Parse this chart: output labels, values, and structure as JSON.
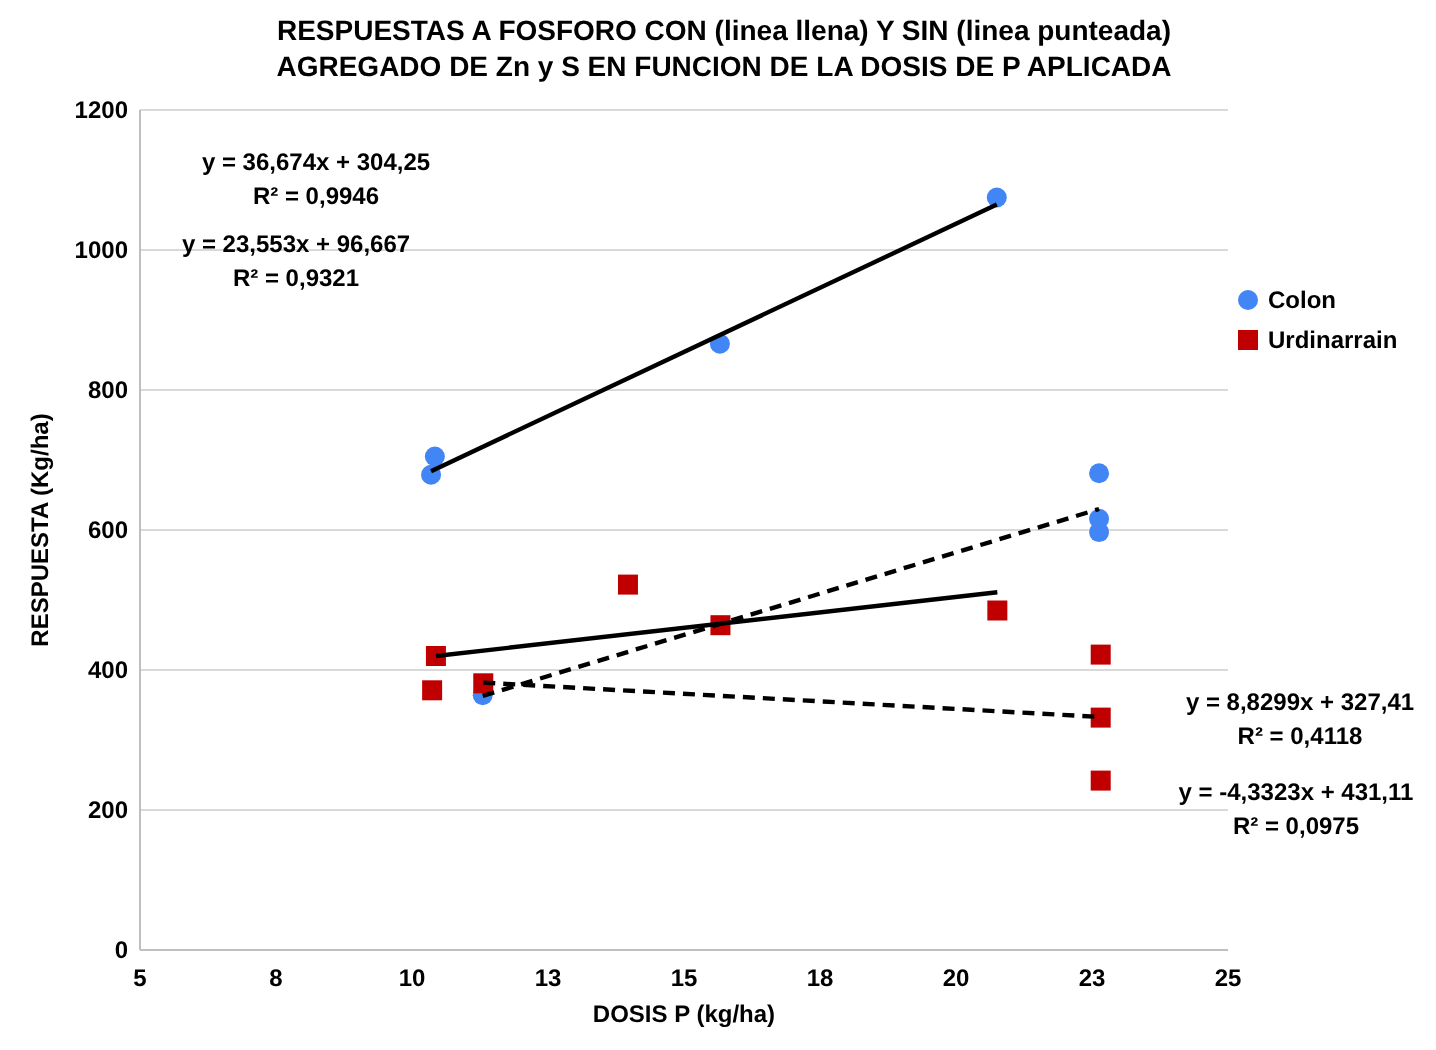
{
  "chart_data": {
    "type": "scatter",
    "title": "RESPUESTAS A FOSFORO CON (linea llena)  Y SIN (linea punteada)\nAGREGADO DE Zn y S EN FUNCION DE LA DOSIS DE P APLICADA",
    "xlabel": "DOSIS P (kg/ha)",
    "ylabel": "RESPUESTA (Kg/ha)",
    "xlim": [
      5,
      25
    ],
    "xticks": [
      5,
      {
        "value": 7.5,
        "label": "8"
      },
      10,
      {
        "value": 12.5,
        "label": "13"
      },
      15,
      {
        "value": 17.5,
        "label": "18"
      },
      20,
      {
        "value": 22.5,
        "label": "23"
      },
      25
    ],
    "ylim": [
      0,
      1200
    ],
    "yticks": [
      0,
      200,
      400,
      600,
      800,
      1000,
      1200
    ],
    "grid": "y",
    "legend": "right",
    "series": [
      {
        "name": "Colon",
        "marker": "circle",
        "color": "#4285f4",
        "x": [
          10.35,
          10.42,
          11.3,
          15.66,
          20.75,
          22.63,
          22.63,
          22.63
        ],
        "values": [
          679,
          705,
          364,
          866,
          1075,
          681,
          616,
          597
        ]
      },
      {
        "name": "Urdinarrain",
        "marker": "square",
        "color": "#c00000",
        "x": [
          10.44,
          10.37,
          11.31,
          13.97,
          15.67,
          20.76,
          22.66,
          22.66,
          22.66
        ],
        "values": [
          420,
          371,
          381,
          522,
          464,
          485,
          422,
          332,
          242
        ]
      },
      {
        "type": "line",
        "marker": "none",
        "line_style": "solid",
        "color": "#000000",
        "x": [
          10.35,
          20.75
        ],
        "values": [
          684,
          1065
        ]
      },
      {
        "type": "line",
        "marker": "none",
        "line_style": "dashed",
        "color": "#000000",
        "x": [
          11.3,
          22.63
        ],
        "values": [
          363,
          630
        ]
      },
      {
        "type": "line",
        "marker": "none",
        "line_style": "solid",
        "color": "#000000",
        "x": [
          10.44,
          20.76
        ],
        "values": [
          420,
          511
        ]
      },
      {
        "type": "line",
        "marker": "none",
        "line_style": "dashed",
        "color": "#000000",
        "x": [
          11.31,
          22.63
        ],
        "values": [
          382,
          333
        ]
      }
    ],
    "annotations": [
      "y = 36,674x + 304,25\nR² = 0,9946",
      "y = 23,553x + 96,667\nR² = 0,9321",
      "y = 8,8299x + 327,41\nR² = 0,4118",
      "y = -4,3323x + 431,11\nR² = 0,0975"
    ]
  }
}
